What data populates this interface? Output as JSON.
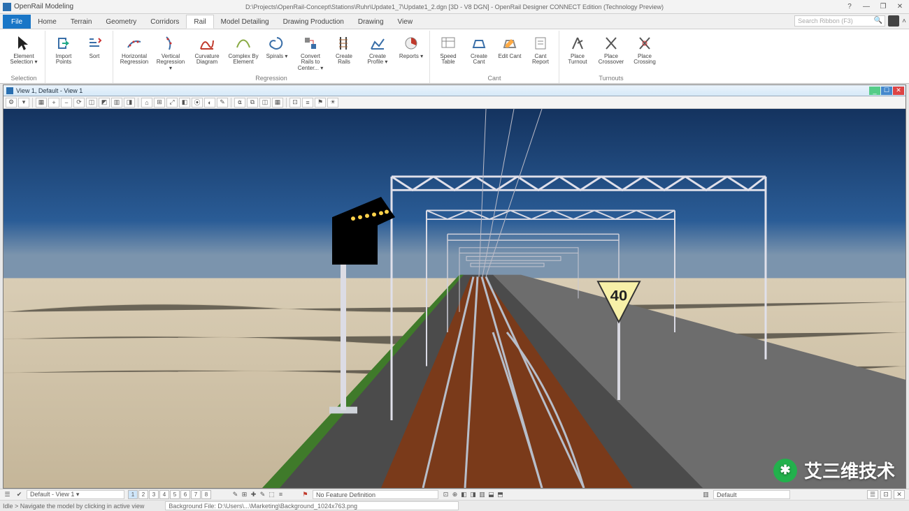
{
  "app": {
    "name": "OpenRail Modeling",
    "document_path": "D:\\Projects\\OpenRail-Concept\\Stations\\Ruhr\\Update1_7\\Update1_2.dgn [3D - V8 DGN] - OpenRail Designer CONNECT Edition (Technology Preview)"
  },
  "window_controls": {
    "help": "?",
    "minimize": "—",
    "restore": "❐",
    "close": "✕"
  },
  "search": {
    "placeholder": "Search Ribbon (F3)"
  },
  "ribbon": {
    "file_label": "File",
    "tabs": [
      "Home",
      "Terrain",
      "Geometry",
      "Corridors",
      "Rail",
      "Model Detailing",
      "Drawing Production",
      "Drawing",
      "View"
    ],
    "active_tab_index": 4,
    "groups": [
      {
        "label": "Selection",
        "buttons": [
          {
            "name": "element-selection",
            "label": "Element Selection ▾",
            "icon": "cursor"
          }
        ]
      },
      {
        "label": "",
        "buttons": [
          {
            "name": "import-points",
            "label": "Import Points",
            "icon": "import"
          },
          {
            "name": "sort",
            "label": "Sort",
            "icon": "sort"
          }
        ]
      },
      {
        "label": "Regression",
        "buttons": [
          {
            "name": "horizontal-regression",
            "label": "Horizontal Regression",
            "icon": "hreg"
          },
          {
            "name": "vertical-regression",
            "label": "Vertical Regression ▾",
            "icon": "vreg"
          },
          {
            "name": "curvature-diagram",
            "label": "Curvature Diagram",
            "icon": "curv"
          },
          {
            "name": "complex-by-element",
            "label": "Complex By Element",
            "icon": "complex"
          },
          {
            "name": "spirals",
            "label": "Spirals ▾",
            "icon": "spiral"
          },
          {
            "name": "convert-rails",
            "label": "Convert Rails to Center... ▾",
            "icon": "convert"
          },
          {
            "name": "create-rails",
            "label": "Create Rails",
            "icon": "crails"
          },
          {
            "name": "create-profile",
            "label": "Create Profile ▾",
            "icon": "cprofile"
          },
          {
            "name": "reports",
            "label": "Reports ▾",
            "icon": "reports"
          }
        ]
      },
      {
        "label": "Cant",
        "buttons": [
          {
            "name": "speed-table",
            "label": "Speed Table",
            "icon": "speed"
          },
          {
            "name": "create-cant",
            "label": "Create Cant",
            "icon": "ccant"
          },
          {
            "name": "edit-cant",
            "label": "Edit Cant",
            "icon": "ecant"
          },
          {
            "name": "cant-report",
            "label": "Cant Report",
            "icon": "rcant"
          }
        ]
      },
      {
        "label": "Turnouts",
        "buttons": [
          {
            "name": "place-turnout",
            "label": "Place Turnout",
            "icon": "turnout"
          },
          {
            "name": "place-crossover",
            "label": "Place Crossover",
            "icon": "crossover"
          },
          {
            "name": "place-crossing",
            "label": "Place Crossing",
            "icon": "crossing"
          }
        ]
      }
    ]
  },
  "view": {
    "title": "View 1, Default - View 1",
    "toolbar_buttons": [
      "⚙",
      "▾",
      "▦",
      "+",
      "−",
      "⟳",
      "◫",
      "◩",
      "▥",
      "◨",
      "⌂",
      "⊞",
      "⤢",
      "◧",
      "⦿",
      "◐",
      "✎",
      "⍺",
      "⧉",
      "◫",
      "▦",
      "⊡",
      "≡",
      "⚑",
      "☀"
    ]
  },
  "scene": {
    "sky_color_top": "#1c4a86",
    "sky_color_horizon": "#6a8db0",
    "ground_color": "#cdbfa7",
    "track_bed_color": "#4a4a4a",
    "ballast_color": "#7a3a1a",
    "rail_color": "#9aa0a6",
    "truss_color": "#e8e8f0",
    "signal_sign": {
      "value": "40",
      "bg": "#f7f0a8",
      "shape": "triangle-down"
    },
    "left_signal": {
      "dots": 6
    }
  },
  "status": {
    "dropdown_left": "☰",
    "view_selector": "Default - View 1 ▾",
    "view_buttons": [
      "1",
      "2",
      "3",
      "4",
      "5",
      "6",
      "7",
      "8"
    ],
    "prompt": "Idle > Navigate the model by clicking in active view",
    "feature_definition_label": "No Feature Definition",
    "active_level": "Default",
    "background_file": "Background File: D:\\Users\\...\\Marketing\\Background_1024x763.png",
    "icons_mid": [
      "✎",
      "⊞",
      "✚",
      "✎",
      "⬚",
      "≡",
      "⊡",
      "⊕",
      "◧",
      "◨",
      "▥",
      "⬓",
      "⬒"
    ],
    "icons_right": [
      "☰",
      "⊡",
      "✕"
    ]
  },
  "watermark": {
    "text": "艾三维技术"
  }
}
